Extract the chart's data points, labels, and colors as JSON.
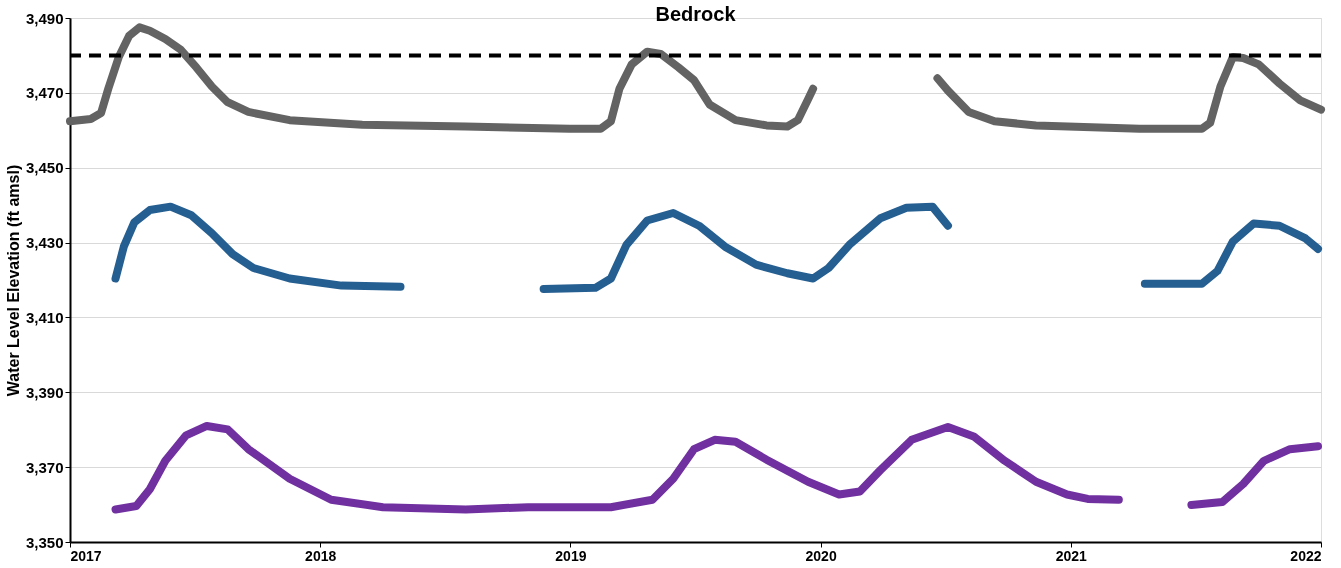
{
  "chart_data": {
    "type": "line",
    "title": "Bedrock",
    "ylabel": "Water Level Elevation (ft amsl)",
    "xlim": [
      2017,
      2022
    ],
    "xticks": [
      2017,
      2018,
      2019,
      2020,
      2021,
      2022
    ],
    "ylim": [
      3350,
      3490
    ],
    "yticks": [
      {
        "value": 3350,
        "label": "3,350"
      },
      {
        "value": 3370,
        "label": "3,370"
      },
      {
        "value": 3390,
        "label": "3,390"
      },
      {
        "value": 3410,
        "label": "3,410"
      },
      {
        "value": 3430,
        "label": "3,430"
      },
      {
        "value": 3450,
        "label": "3,450"
      },
      {
        "value": 3470,
        "label": "3,470"
      },
      {
        "value": 3490,
        "label": "3,490"
      }
    ],
    "grid": "y",
    "legend": false,
    "line_style": "solid",
    "ref_lines": [
      {
        "axis": "y",
        "value": 3480,
        "color": "#000000",
        "line_style": "dashed"
      }
    ],
    "series": [
      {
        "color": "#636363",
        "x": [
          2017.0,
          2017.083,
          2017.124,
          2017.153,
          2017.195,
          2017.236,
          2017.278,
          2017.319,
          2017.381,
          2017.443,
          2017.505,
          2017.567,
          2017.63,
          2017.713,
          2017.878,
          2018.168,
          2018.582,
          2018.997,
          2019.121,
          2019.162,
          2019.196,
          2019.245,
          2019.307,
          2019.361,
          2019.432,
          2019.494,
          2019.556,
          2019.66,
          2019.784,
          2019.867,
          2019.909,
          2019.95,
          2019.97,
          2020.2,
          2020.467,
          2020.509,
          2020.592,
          2020.695,
          2020.861,
          2021.275,
          2021.524,
          2021.557,
          2021.598,
          2021.648,
          2021.689,
          2021.751,
          2021.834,
          2021.917,
          2022.0
        ],
        "values": [
          3462.4,
          3463.0,
          3464.6,
          3471.1,
          3479.6,
          3485.2,
          3487.5,
          3486.6,
          3484.4,
          3481.5,
          3476.8,
          3471.7,
          3467.5,
          3464.9,
          3462.7,
          3461.5,
          3461.0,
          3460.4,
          3460.4,
          3462.4,
          3471.1,
          3477.6,
          3481.0,
          3480.4,
          3476.8,
          3473.4,
          3466.9,
          3462.7,
          3461.3,
          3461.0,
          3462.7,
          3468.3,
          3471.1,
          null,
          3473.9,
          3470.6,
          3464.9,
          3462.4,
          3461.3,
          3460.4,
          3460.4,
          3462.0,
          3471.7,
          3479.6,
          3479.3,
          3477.6,
          3472.5,
          3468.0,
          3465.5
        ]
      },
      {
        "color": "#255e91",
        "x": [
          2017.182,
          2017.215,
          2017.257,
          2017.319,
          2017.402,
          2017.485,
          2017.567,
          2017.65,
          2017.733,
          2017.878,
          2018.085,
          2018.321,
          2018.6,
          2018.893,
          2019.1,
          2019.162,
          2019.224,
          2019.307,
          2019.411,
          2019.514,
          2019.618,
          2019.742,
          2019.867,
          2019.97,
          2020.032,
          2020.115,
          2020.239,
          2020.343,
          2020.447,
          2020.509,
          2021.0,
          2021.296,
          2021.524,
          2021.586,
          2021.648,
          2021.731,
          2021.834,
          2021.938,
          2021.988
        ],
        "values": [
          3420.4,
          3428.9,
          3435.4,
          3438.7,
          3439.6,
          3437.3,
          3432.5,
          3426.9,
          3423.2,
          3420.4,
          3418.5,
          3418.2,
          null,
          3417.6,
          3417.9,
          3420.4,
          3429.4,
          3435.9,
          3437.9,
          3434.5,
          3428.9,
          3424.1,
          3421.8,
          3420.4,
          3423.2,
          3429.4,
          3436.5,
          3439.3,
          3439.6,
          3434.5,
          null,
          3419.0,
          3419.0,
          3422.4,
          3430.3,
          3435.1,
          3434.5,
          3431.1,
          3428.3
        ]
      },
      {
        "color": "#7030a0",
        "x": [
          2017.182,
          2017.265,
          2017.319,
          2017.381,
          2017.464,
          2017.547,
          2017.63,
          2017.713,
          2017.878,
          2018.044,
          2018.251,
          2018.582,
          2018.831,
          2019.162,
          2019.328,
          2019.411,
          2019.494,
          2019.577,
          2019.66,
          2019.784,
          2019.95,
          2020.074,
          2020.157,
          2020.239,
          2020.364,
          2020.509,
          2020.612,
          2020.736,
          2020.861,
          2020.985,
          2021.068,
          2021.192,
          2021.35,
          2021.482,
          2021.606,
          2021.689,
          2021.772,
          2021.876,
          2021.988
        ],
        "values": [
          3358.7,
          3359.6,
          3364.1,
          3371.7,
          3378.5,
          3381.0,
          3380.1,
          3374.8,
          3366.9,
          3361.3,
          3359.3,
          3358.7,
          3359.3,
          3359.3,
          3361.3,
          3366.9,
          3374.8,
          3377.3,
          3376.8,
          3372.0,
          3366.1,
          3362.7,
          3363.5,
          3369.2,
          3377.3,
          3380.7,
          3378.2,
          3371.7,
          3366.1,
          3362.7,
          3361.5,
          3361.3,
          null,
          3359.9,
          3360.7,
          3365.5,
          3371.7,
          3374.8,
          3375.6
        ]
      }
    ]
  }
}
